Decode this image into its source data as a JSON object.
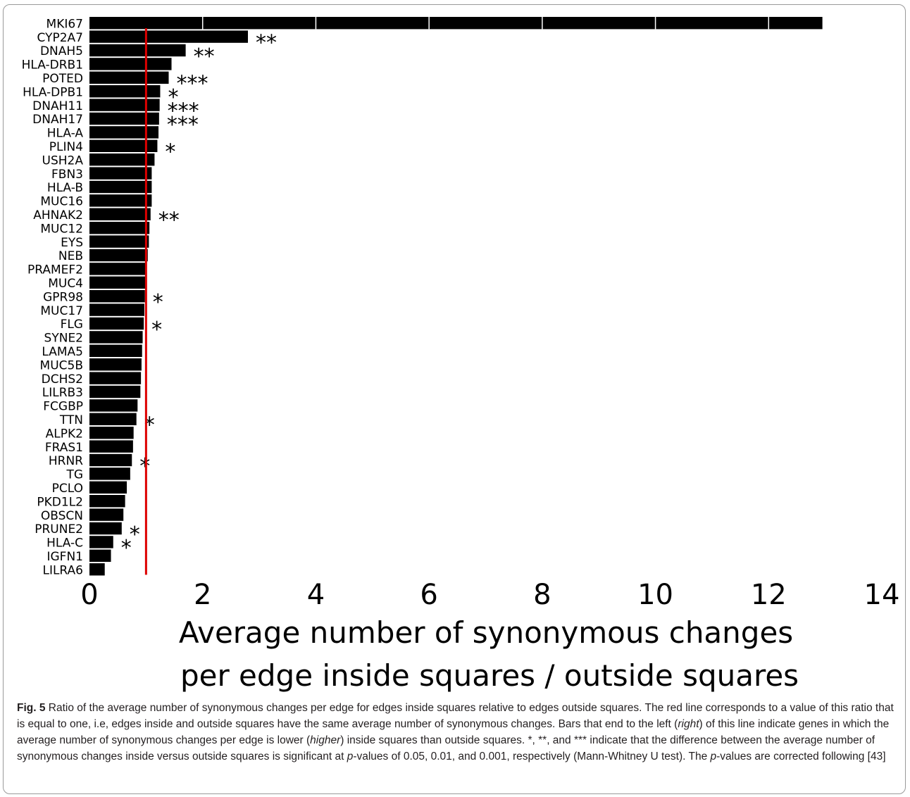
{
  "chart_data": {
    "type": "bar",
    "orientation": "horizontal",
    "categories": [
      "MKI67",
      "CYP2A7",
      "DNAH5",
      "HLA-DRB1",
      "POTED",
      "HLA-DPB1",
      "DNAH11",
      "DNAH17",
      "HLA-A",
      "PLIN4",
      "USH2A",
      "FBN3",
      "HLA-B",
      "MUC16",
      "AHNAK2",
      "MUC12",
      "EYS",
      "NEB",
      "PRAMEF2",
      "MUC4",
      "GPR98",
      "MUC17",
      "FLG",
      "SYNE2",
      "LAMA5",
      "MUC5B",
      "DCHS2",
      "LILRB3",
      "FCGBP",
      "TTN",
      "ALPK2",
      "FRAS1",
      "HRNR",
      "TG",
      "PCLO",
      "PKD1L2",
      "OBSCN",
      "PRUNE2",
      "HLA-C",
      "IGFN1",
      "LILRA6"
    ],
    "values": [
      12.95,
      2.8,
      1.7,
      1.45,
      1.4,
      1.25,
      1.24,
      1.23,
      1.22,
      1.2,
      1.15,
      1.1,
      1.1,
      1.1,
      1.08,
      1.06,
      1.05,
      1.03,
      1.0,
      1.0,
      0.98,
      0.97,
      0.96,
      0.94,
      0.93,
      0.92,
      0.91,
      0.9,
      0.85,
      0.83,
      0.78,
      0.77,
      0.75,
      0.72,
      0.66,
      0.63,
      0.6,
      0.57,
      0.42,
      0.38,
      0.27
    ],
    "significance": [
      "",
      "**",
      "**",
      "",
      "***",
      "*",
      "***",
      "***",
      "",
      "*",
      "",
      "",
      "",
      "",
      "**",
      "",
      "",
      "",
      "",
      "",
      "*",
      "",
      "*",
      "",
      "",
      "",
      "",
      "",
      "",
      "*",
      "",
      "",
      "*",
      "",
      "",
      "",
      "",
      "*",
      "*",
      "",
      ""
    ],
    "xlabel_lines": [
      "Average number of synonymous changes",
      "per edge inside squares / outside squares"
    ],
    "xlim": [
      0,
      14
    ],
    "xticks": [
      0,
      2,
      4,
      6,
      8,
      10,
      12,
      14
    ],
    "reference_line": 1,
    "bar_color": "#000000",
    "separator_color": "#ffffff",
    "reference_color": "#dd0000",
    "grid": false
  },
  "caption": {
    "label": "Fig. 5",
    "p1": " Ratio of the average number of synonymous changes per edge for edges inside squares relative to edges outside squares. The red line corresponds to a value of this ratio that is equal to one, i.e, edges inside and outside squares have the same average number of synonymous changes. Bars that end to the left (",
    "right": "right",
    "p2": ") of this line indicate genes in which the average number of synonymous changes per edge is lower (",
    "higher": "higher",
    "p3": ") inside squares than outside squares. *, **, and *** indicate that the difference between the average number of synonymous changes inside versus outside squares is significant at ",
    "p_a": "p",
    "p4": "-values of 0.05, 0.01, and 0.001, respectively (Mann-Whitney U test). The ",
    "p_b": "p",
    "p5": "-values are corrected following [43]"
  }
}
